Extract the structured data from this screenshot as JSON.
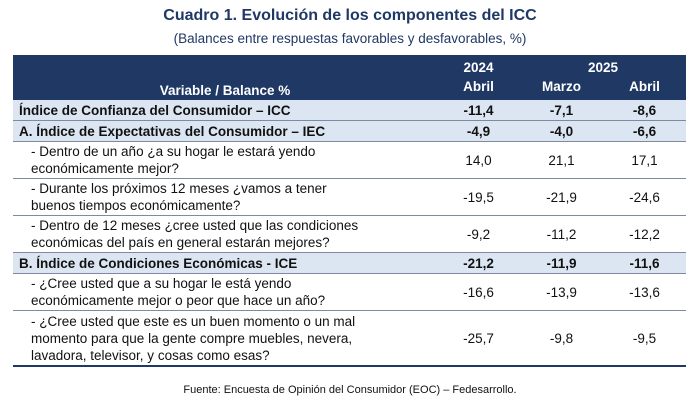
{
  "title": "Cuadro 1. Evolución de los componentes del ICC",
  "subtitle": "(Balances entre respuestas favorables y desfavorables, %)",
  "header": {
    "variable": "Variable / Balance %",
    "year_2024": "2024",
    "year_2025": "2025",
    "col1": "Abril",
    "col2": "Marzo",
    "col3": "Abril"
  },
  "rows": [
    {
      "label": "Índice de Confianza del Consumidor – ICC",
      "v1": "-11,4",
      "v2": "-7,1",
      "v3": "-8,6"
    },
    {
      "label": "A. Índice de Expectativas del Consumidor – IEC",
      "v1": "-4,9",
      "v2": "-4,0",
      "v3": "-6,6"
    },
    {
      "label_l1": "- Dentro de un año ¿a su hogar le estará yendo",
      "label_l2": "económicamente mejor?",
      "v1": "14,0",
      "v2": "21,1",
      "v3": "17,1"
    },
    {
      "label_l1": "- Durante los próximos 12 meses ¿vamos a tener",
      "label_l2": "buenos tiempos económicamente?",
      "v1": "-19,5",
      "v2": "-21,9",
      "v3": "-24,6"
    },
    {
      "label_l1": "- Dentro de 12 meses ¿cree usted que las condiciones",
      "label_l2": "económicas del país en general estarán mejores?",
      "v1": "-9,2",
      "v2": "-11,2",
      "v3": "-12,2"
    },
    {
      "label": "B. Índice de Condiciones Económicas - ICE",
      "v1": "-21,2",
      "v2": "-11,9",
      "v3": "-11,6"
    },
    {
      "label_l1": "- ¿Cree usted que a su hogar le está yendo",
      "label_l2": "económicamente mejor o peor que hace un año?",
      "v1": "-16,6",
      "v2": "-13,9",
      "v3": "-13,6"
    },
    {
      "label_l1": "- ¿Cree usted que este es un buen momento o un mal",
      "label_l2": "momento para que la gente compre muebles, nevera,",
      "label_l3": "lavadora, televisor, y cosas como esas?",
      "v1": "-25,7",
      "v2": "-9,8",
      "v3": "-9,5"
    }
  ],
  "source": "Fuente: Encuesta de Opinión del Consumidor (EOC) – Fedesarrollo."
}
